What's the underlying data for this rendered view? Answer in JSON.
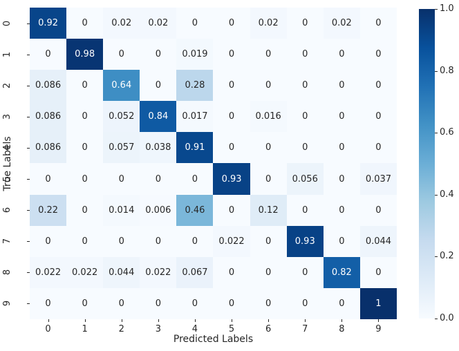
{
  "chart_data": {
    "type": "heatmap",
    "title": "",
    "xlabel": "Predicted Labels",
    "ylabel": "True Labels",
    "x_categories": [
      "0",
      "1",
      "2",
      "3",
      "4",
      "5",
      "6",
      "7",
      "8",
      "9"
    ],
    "y_categories": [
      "0",
      "1",
      "2",
      "3",
      "4",
      "5",
      "6",
      "7",
      "8",
      "9"
    ],
    "matrix": [
      [
        "0.92",
        "0",
        "0.02",
        "0.02",
        "0",
        "0",
        "0.02",
        "0",
        "0.02",
        "0"
      ],
      [
        "0",
        "0.98",
        "0",
        "0",
        "0.019",
        "0",
        "0",
        "0",
        "0",
        "0"
      ],
      [
        "0.086",
        "0",
        "0.64",
        "0",
        "0.28",
        "0",
        "0",
        "0",
        "0",
        "0"
      ],
      [
        "0.086",
        "0",
        "0.052",
        "0.84",
        "0.017",
        "0",
        "0.016",
        "0",
        "0",
        "0"
      ],
      [
        "0.086",
        "0",
        "0.057",
        "0.038",
        "0.91",
        "0",
        "0",
        "0",
        "0",
        "0"
      ],
      [
        "0",
        "0",
        "0",
        "0",
        "0",
        "0.93",
        "0",
        "0.056",
        "0",
        "0.037"
      ],
      [
        "0.22",
        "0",
        "0.014",
        "0.006",
        "0.46",
        "0",
        "0.12",
        "0",
        "0",
        "0"
      ],
      [
        "0",
        "0",
        "0",
        "0",
        "0",
        "0.022",
        "0",
        "0.93",
        "0",
        "0.044"
      ],
      [
        "0.022",
        "0.022",
        "0.044",
        "0.022",
        "0.067",
        "0",
        "0",
        "0",
        "0.82",
        "0"
      ],
      [
        "0",
        "0",
        "0",
        "0",
        "0",
        "0",
        "0",
        "0",
        "0",
        "1"
      ]
    ],
    "colormap": "Blues",
    "colormap_anchors": [
      {
        "pos": 0.0,
        "rgb": [
          247,
          251,
          255
        ]
      },
      {
        "pos": 0.125,
        "rgb": [
          222,
          235,
          247
        ]
      },
      {
        "pos": 0.25,
        "rgb": [
          198,
          219,
          239
        ]
      },
      {
        "pos": 0.375,
        "rgb": [
          158,
          202,
          225
        ]
      },
      {
        "pos": 0.5,
        "rgb": [
          107,
          174,
          214
        ]
      },
      {
        "pos": 0.625,
        "rgb": [
          66,
          146,
          198
        ]
      },
      {
        "pos": 0.75,
        "rgb": [
          33,
          113,
          181
        ]
      },
      {
        "pos": 0.875,
        "rgb": [
          8,
          81,
          156
        ]
      },
      {
        "pos": 1.0,
        "rgb": [
          8,
          48,
          107
        ]
      }
    ],
    "colorbar": {
      "min": 0.0,
      "max": 1.0,
      "ticks": [
        "1.0",
        "0.8",
        "0.6",
        "0.4",
        "0.2",
        "0.0"
      ],
      "position": "right"
    },
    "legend": null,
    "grid": false,
    "annotation_dark_color": "#262626",
    "annotation_light_color": "#ffffff"
  }
}
